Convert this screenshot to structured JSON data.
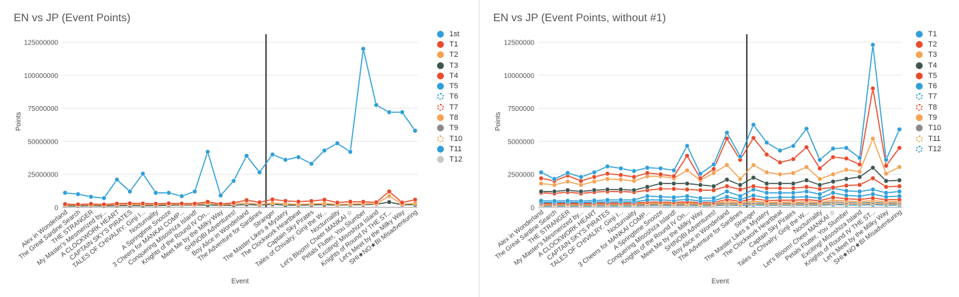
{
  "chart_data": [
    {
      "type": "line",
      "title": "EN vs JP (Event Points)",
      "xlabel": "Event",
      "ylabel": "Points",
      "ylim": [
        0,
        130000000
      ],
      "yticks": [
        "0",
        "25000000",
        "50000000",
        "75000000",
        "100000000",
        "125000000"
      ],
      "yticks_values": [
        0,
        25000000,
        50000000,
        75000000,
        100000000,
        125000000
      ],
      "legend_position": "right",
      "divider_after_category": 16,
      "categories": [
        "Alex in Wonderland",
        "The Great Sardine Search",
        "THE STRANGER",
        "My Master's Mesmerized by...",
        "A CLOCKWORK HEART",
        "CAPTAIN SKY'S PIRATES",
        "TALES OF CHIVALRY: Ginji I...",
        "Nocturnality",
        "A Springtime Snooze",
        "3 Cheers for MANKAI COMP...",
        "Conquering Misoshiza Island!",
        "Knights of the Round IV On...",
        "Meet Me by the Milky Way",
        "SHINOBI Adventures!",
        "Boy Alice in Wonderland",
        "The Adventure for Sardines",
        "Stranger",
        "The Master Likes a Mystery",
        "The Clockwork Heartbeat",
        "Captain Sky Pirates",
        "Tales of Chivalry: Ginji the W...",
        "Nocturnality",
        "Let's Bloom! Cheer MANKAI ☆",
        "Petals Flutter, You Slumber",
        "Exciting! Misoshiza Island",
        "Knights of Round IV THE ST...",
        "Let's Meet by the Milky Way",
        "SHI★NO★BI Misadventuring"
      ],
      "series": [
        {
          "name": "1st",
          "color": "#2e9fd9",
          "values": [
            11000000,
            10000000,
            8000000,
            7000000,
            21000000,
            12000000,
            25500000,
            11000000,
            11000000,
            8500000,
            12000000,
            42000000,
            9000000,
            20000000,
            39000000,
            26500000,
            40000000,
            36000000,
            38000000,
            33000000,
            43000000,
            48500000,
            42000000,
            120000000,
            77500000,
            72000000,
            72000000,
            58000000
          ]
        },
        {
          "name": "T1",
          "color": "#e94b2c",
          "values": [
            2500000,
            2200000,
            2600000,
            2200000,
            2800000,
            3000000,
            2900000,
            2700000,
            3000000,
            2900000,
            2800000,
            4200000,
            2600000,
            3400000,
            5500000,
            3800000,
            6000000,
            4900000,
            4300000,
            4800000,
            5800000,
            3600000,
            4300000,
            4200000,
            3800000,
            12000000,
            3600000,
            5800000
          ]
        },
        {
          "name": "T2",
          "color": "#f4a354",
          "values": [
            1800000,
            1700000,
            1900000,
            1700000,
            2100000,
            2200000,
            2200000,
            2000000,
            2300000,
            2200000,
            2100000,
            3200000,
            2000000,
            2600000,
            3400000,
            2300000,
            3200000,
            2700000,
            2400000,
            2600000,
            3000000,
            2200000,
            2500000,
            2800000,
            2700000,
            8500000,
            2400000,
            3000000
          ]
        },
        {
          "name": "T3",
          "color": "#3f5650",
          "values": [
            1200000,
            1100000,
            1300000,
            1100000,
            1300000,
            1300000,
            1300000,
            1300000,
            1600000,
            1700000,
            1700000,
            1800000,
            1600000,
            1600000,
            2200000,
            1700000,
            2300000,
            1700000,
            1700000,
            1800000,
            2000000,
            1700000,
            1900000,
            2100000,
            2300000,
            4000000,
            1900000,
            2100000
          ]
        }
      ]
    },
    {
      "type": "line",
      "title": "EN vs JP (Event Points, without #1)",
      "xlabel": "Event",
      "ylabel": "Points",
      "ylim": [
        0,
        13000000
      ],
      "yticks": [
        "0",
        "2500000",
        "5000000",
        "7500000",
        "10000000",
        "12500000"
      ],
      "yticks_values": [
        0,
        2500000,
        5000000,
        7500000,
        10000000,
        12500000
      ],
      "legend_position": "right",
      "divider_after_category": 16,
      "categories": [
        "Alex in Wonderland",
        "The Great Sardine Search",
        "THE STRANGER",
        "My Master's Mesmerized by...",
        "A CLOCKWORK HEART",
        "CAPTAIN SKY'S PIRATES",
        "TALES OF CHIVALRY: Ginji I...",
        "Nocturnality",
        "3 Cheers for MANKAI COMP...",
        "A Springtime Snooze",
        "Conquering Misoshiza Island!",
        "Knights of the Round IV On...",
        "Meet Me by the Milky Way",
        "SHINOBI Adventures!",
        "Boy Alice in Wonderland",
        "The Adventure for Sardines",
        "Stranger",
        "The Master Likes a Mystery",
        "The Clockwork Heartbeat",
        "Captain Sky Pirates",
        "Tales of Chivalry: Ginji the W...",
        "Nocturnality",
        "Let's Bloom! Cheer MANKAI ☆",
        "Petals Flutter, You Slumber",
        "Exciting! Misoshiza Island",
        "Knights of Round IV THE ST...",
        "Let's Meet by the Milky Way",
        "SHI★NO★BI Misadventuring"
      ],
      "series": [
        {
          "name": "T1",
          "color": "#2e9fd9",
          "values": [
            2650000,
            2150000,
            2600000,
            2300000,
            2650000,
            3100000,
            2950000,
            2750000,
            3000000,
            2950000,
            2800000,
            4650000,
            2550000,
            3250000,
            5650000,
            3850000,
            6250000,
            4900000,
            4300000,
            4650000,
            5950000,
            3600000,
            4450000,
            4500000,
            3750000,
            12300000,
            3600000,
            5900000
          ]
        },
        {
          "name": "T2",
          "color": "#e94b2c",
          "values": [
            2200000,
            2000000,
            2400000,
            2000000,
            2300000,
            2550000,
            2450000,
            2300000,
            2600000,
            2500000,
            2350000,
            3900000,
            2200000,
            2900000,
            5200000,
            3600000,
            5250000,
            4000000,
            3400000,
            3650000,
            4550000,
            2950000,
            3800000,
            3700000,
            3250000,
            9000000,
            3150000,
            4500000
          ]
        },
        {
          "name": "T3",
          "color": "#f4a354",
          "values": [
            1800000,
            1700000,
            1950000,
            1700000,
            1950000,
            2150000,
            2100000,
            2000000,
            2350000,
            2350000,
            2200000,
            2800000,
            2050000,
            2600000,
            3200000,
            2150000,
            3200000,
            2650000,
            2500000,
            2600000,
            3050000,
            2150000,
            2500000,
            2850000,
            2700000,
            5200000,
            2550000,
            3050000
          ]
        },
        {
          "name": "T4",
          "color": "#3f5650",
          "values": [
            1200000,
            1200000,
            1300000,
            1200000,
            1300000,
            1350000,
            1350000,
            1300000,
            1550000,
            1800000,
            1800000,
            1800000,
            1700000,
            1600000,
            2100000,
            1700000,
            2250000,
            1800000,
            1800000,
            1800000,
            2050000,
            1700000,
            1950000,
            2150000,
            2300000,
            3000000,
            2000000,
            2050000
          ]
        },
        {
          "name": "T5",
          "color": "#e94b2c",
          "values": [
            1100000,
            1050000,
            1150000,
            1050000,
            1150000,
            1200000,
            1200000,
            1150000,
            1300000,
            1400000,
            1400000,
            1350000,
            1300000,
            1300000,
            1600000,
            1350000,
            1600000,
            1450000,
            1450000,
            1450000,
            1550000,
            1400000,
            1500000,
            1650000,
            1700000,
            2200000,
            1550000,
            1600000
          ]
        },
        {
          "name": "T6",
          "color": "#2e9fd9",
          "values": [
            500000,
            480000,
            500000,
            480000,
            520000,
            560000,
            560000,
            560000,
            850000,
            800000,
            760000,
            850000,
            700000,
            700000,
            1200000,
            850000,
            1350000,
            1100000,
            1100000,
            1100000,
            1200000,
            1000000,
            1450000,
            1250000,
            1200000,
            1350000,
            1100000,
            1200000
          ]
        },
        {
          "name": "T7",
          "color": "#2e9fd9",
          "values": [
            380000,
            370000,
            390000,
            370000,
            400000,
            420000,
            420000,
            420000,
            560000,
            560000,
            520000,
            600000,
            480000,
            500000,
            800000,
            600000,
            900000,
            720000,
            760000,
            760000,
            800000,
            700000,
            1100000,
            900000,
            850000,
            1000000,
            800000,
            850000
          ]
        },
        {
          "name": "T8",
          "color": "#e94b2c",
          "values": [
            300000,
            290000,
            300000,
            290000,
            310000,
            320000,
            320000,
            320000,
            400000,
            400000,
            380000,
            420000,
            350000,
            360000,
            600000,
            450000,
            650000,
            520000,
            540000,
            540000,
            580000,
            500000,
            750000,
            650000,
            600000,
            700000,
            580000,
            600000
          ]
        },
        {
          "name": "T9",
          "color": "#f4a354",
          "values": [
            240000,
            230000,
            240000,
            230000,
            250000,
            260000,
            260000,
            260000,
            310000,
            310000,
            290000,
            330000,
            270000,
            280000,
            450000,
            330000,
            480000,
            380000,
            400000,
            400000,
            430000,
            370000,
            550000,
            480000,
            440000,
            520000,
            430000,
            450000
          ]
        },
        {
          "name": "T10",
          "color": "#8a8a8a",
          "values": [
            190000,
            180000,
            190000,
            180000,
            200000,
            210000,
            210000,
            210000,
            240000,
            240000,
            230000,
            260000,
            210000,
            220000,
            330000,
            250000,
            350000,
            290000,
            300000,
            300000,
            320000,
            280000,
            420000,
            360000,
            330000,
            390000,
            320000,
            340000
          ]
        },
        {
          "name": "T11",
          "color": "#f4a354",
          "values": [
            140000,
            135000,
            140000,
            135000,
            150000,
            155000,
            155000,
            155000,
            180000,
            180000,
            170000,
            190000,
            160000,
            165000,
            240000,
            180000,
            260000,
            210000,
            220000,
            220000,
            240000,
            210000,
            300000,
            260000,
            240000,
            290000,
            235000,
            250000
          ]
        },
        {
          "name": "T12",
          "color": "#2e9fd9",
          "values": [
            100000,
            95000,
            100000,
            95000,
            105000,
            110000,
            110000,
            110000,
            130000,
            130000,
            120000,
            140000,
            115000,
            120000,
            170000,
            130000,
            180000,
            150000,
            160000,
            160000,
            170000,
            150000,
            210000,
            180000,
            170000,
            200000,
            165000,
            175000
          ]
        }
      ]
    }
  ],
  "legend_left": [
    {
      "name": "1st",
      "color": "#2e9fd9",
      "style": "solid"
    },
    {
      "name": "T1",
      "color": "#e94b2c",
      "style": "solid"
    },
    {
      "name": "T2",
      "color": "#f4a354",
      "style": "solid"
    },
    {
      "name": "T3",
      "color": "#3f5650",
      "style": "solid"
    },
    {
      "name": "T4",
      "color": "#e94b2c",
      "style": "solid"
    },
    {
      "name": "T5",
      "color": "#2e9fd9",
      "style": "solid"
    },
    {
      "name": "T6",
      "color": "#2e9fd9",
      "style": "dotted"
    },
    {
      "name": "T7",
      "color": "#e94b2c",
      "style": "dotted"
    },
    {
      "name": "T8",
      "color": "#f4a354",
      "style": "solid"
    },
    {
      "name": "T9",
      "color": "#8a8a8a",
      "style": "solid"
    },
    {
      "name": "T10",
      "color": "#f4a354",
      "style": "dotted"
    },
    {
      "name": "T11",
      "color": "#2e9fd9",
      "style": "solid"
    },
    {
      "name": "T12",
      "color": "#c8c8c8",
      "style": "solid"
    }
  ],
  "legend_right": [
    {
      "name": "T1",
      "color": "#2e9fd9",
      "style": "solid"
    },
    {
      "name": "T2",
      "color": "#e94b2c",
      "style": "solid"
    },
    {
      "name": "T3",
      "color": "#f4a354",
      "style": "solid"
    },
    {
      "name": "T4",
      "color": "#3f5650",
      "style": "solid"
    },
    {
      "name": "T5",
      "color": "#e94b2c",
      "style": "solid"
    },
    {
      "name": "T6",
      "color": "#2e9fd9",
      "style": "solid"
    },
    {
      "name": "T7",
      "color": "#2e9fd9",
      "style": "dotted"
    },
    {
      "name": "T8",
      "color": "#e94b2c",
      "style": "dotted"
    },
    {
      "name": "T9",
      "color": "#f4a354",
      "style": "solid"
    },
    {
      "name": "T10",
      "color": "#8a8a8a",
      "style": "solid"
    },
    {
      "name": "T11",
      "color": "#f4a354",
      "style": "dotted"
    },
    {
      "name": "T12",
      "color": "#2e9fd9",
      "style": "dotted"
    }
  ]
}
